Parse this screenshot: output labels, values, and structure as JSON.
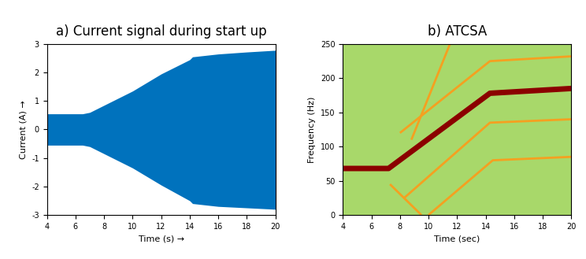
{
  "chart_data": [
    {
      "type": "area",
      "title": "a) Current signal during start up",
      "x_label": "Time (s) →",
      "y_label": "Current (A) →",
      "x": [
        4,
        6.5,
        7,
        8,
        10,
        12,
        14,
        14.2,
        16,
        18,
        20
      ],
      "series": [
        {
          "color": "#0072bd",
          "values": [
            0.55,
            0.55,
            0.6,
            0.85,
            1.35,
            1.95,
            2.45,
            2.55,
            2.65,
            2.72,
            2.78
          ]
        },
        {
          "color": "#0072bd",
          "values": [
            -0.55,
            -0.55,
            -0.6,
            -0.85,
            -1.35,
            -1.95,
            -2.5,
            -2.6,
            -2.7,
            -2.75,
            -2.8
          ]
        }
      ],
      "xlim": [
        4,
        20
      ],
      "xticks": [
        4,
        6,
        8,
        10,
        12,
        14,
        16,
        18,
        20
      ],
      "ylim": [
        -3,
        3
      ],
      "yticks": [
        -3,
        -2,
        -1,
        0,
        1,
        2,
        3
      ],
      "grid": false
    },
    {
      "type": "line",
      "title": "b) ATCSA",
      "x_label": "Time (sec)",
      "y_label": "Frequency (Hz)",
      "series": [
        {
          "color": "#8b0000",
          "x": [
            4,
            7.2,
            14.3,
            20
          ],
          "values": [
            68,
            68,
            178,
            185
          ]
        },
        {
          "color": "#f5a020",
          "x": [
            8,
            14.3,
            20
          ],
          "values": [
            120,
            225,
            232
          ]
        },
        {
          "color": "#f5a020",
          "x": [
            8.3,
            14.3,
            20
          ],
          "values": [
            25,
            135,
            140
          ]
        },
        {
          "color": "#f5a020",
          "x": [
            10,
            14.5,
            20
          ],
          "values": [
            0,
            80,
            85
          ]
        },
        {
          "color": "#f5a020",
          "x": [
            8.8,
            11.5
          ],
          "values": [
            110,
            250
          ]
        },
        {
          "color": "#f5a020",
          "x": [
            7.3,
            9.5
          ],
          "values": [
            45,
            0
          ]
        }
      ],
      "xlim": [
        4,
        20
      ],
      "xticks": [
        4,
        6,
        8,
        10,
        12,
        14,
        16,
        18,
        20
      ],
      "ylim": [
        0,
        250
      ],
      "yticks": [
        0,
        50,
        100,
        150,
        200,
        250
      ],
      "grid": false
    }
  ]
}
